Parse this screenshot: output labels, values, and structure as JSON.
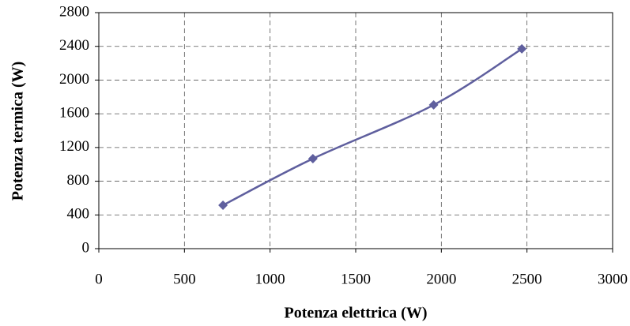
{
  "chart_data": {
    "type": "line",
    "x_label": "Potenza  elettrica (W)",
    "y_label": "Potenza termica (W)",
    "x": [
      725,
      1250,
      1955,
      2470
    ],
    "series": [
      {
        "color": "#5f5f9e",
        "values": [
          515,
          1068,
          1705,
          2370
        ]
      }
    ],
    "xlim": [
      0,
      3000
    ],
    "xticks": [
      0,
      500,
      1000,
      1500,
      2000,
      2500,
      3000
    ],
    "ylim": [
      0,
      2800
    ],
    "yticks": [
      0,
      400,
      800,
      1200,
      1600,
      2000,
      2400,
      2800
    ],
    "grid": true,
    "smooth": true
  }
}
